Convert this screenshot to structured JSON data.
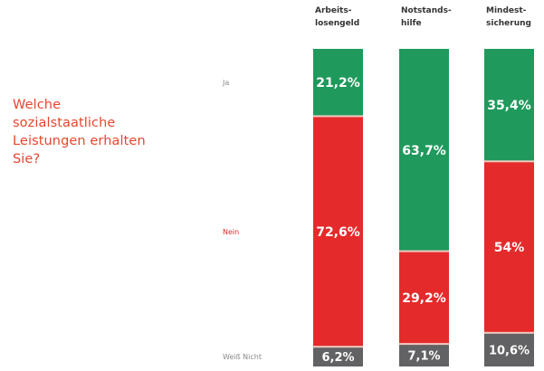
{
  "question": {
    "lines": [
      "Welche",
      "sozialstaatliche",
      "Leistungen erhalten",
      "Sie?"
    ]
  },
  "chart_data": {
    "type": "bar",
    "stacked": true,
    "stack_mode": "percent",
    "orientation": "vertical",
    "categories": [
      [
        "Arbeits-",
        "losengeld"
      ],
      [
        "Notstands-",
        "hilfe"
      ],
      [
        "Mindest-",
        "sicherung"
      ]
    ],
    "series": [
      {
        "name": "Ja",
        "values": [
          21.2,
          63.7,
          35.4
        ],
        "labels": [
          "21,2%",
          "63,7%",
          "35,4%"
        ],
        "color": "#1f9a5c"
      },
      {
        "name": "Nein",
        "values": [
          72.6,
          29.2,
          54.0
        ],
        "labels": [
          "72,6%",
          "29,2%",
          "54%"
        ],
        "color": "#e42a2a"
      },
      {
        "name": "Weiß Nicht",
        "values": [
          6.2,
          7.1,
          10.6
        ],
        "labels": [
          "6,2%",
          "7,1%",
          "10,6%"
        ],
        "color": "#626264"
      }
    ],
    "row_label_colors": [
      "#8a8a8a",
      "#e42a2a",
      "#8a8a8a"
    ],
    "ylim": [
      0,
      100
    ],
    "legend": "left-row-labels",
    "grid": false
  }
}
